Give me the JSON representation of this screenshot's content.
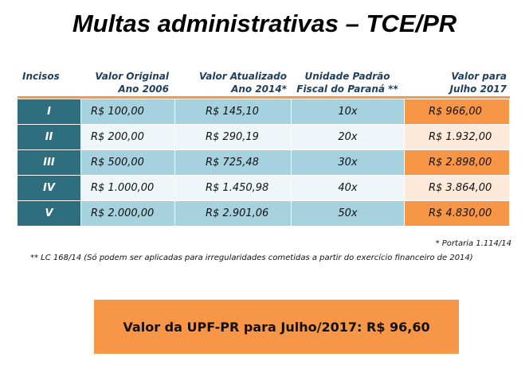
{
  "header": {
    "title": "Multas administrativas – TCE/PR"
  },
  "table": {
    "columns": [
      [
        "Incisos"
      ],
      [
        "Valor Original",
        "Ano 2006"
      ],
      [
        "Valor Atualizado",
        "Ano 2014*"
      ],
      [
        "Unidade Padrão",
        "Fiscal do Paraná **"
      ],
      [
        "Valor para",
        "Julho 2017"
      ]
    ],
    "rows": [
      [
        "I",
        "R$ 100,00",
        "R$ 145,10",
        "10x",
        "R$ 966,00"
      ],
      [
        "II",
        "R$ 200,00",
        "R$ 290,19",
        "20x",
        "R$ 1.932,00"
      ],
      [
        "III",
        "R$ 500,00",
        "R$ 725,48",
        "30x",
        "R$ 2.898,00"
      ],
      [
        "IV",
        "R$ 1.000,00",
        "R$ 1.450,98",
        "40x",
        "R$ 3.864,00"
      ],
      [
        "V",
        "R$ 2.000,00",
        "R$ 2.901,06",
        "50x",
        "R$ 4.830,00"
      ]
    ]
  },
  "footnotes": [
    "* Portaria 1.114/14",
    "** LC 168/14 (Só podem ser aplicadas para irregularidades cometidas a partir do exercício financeiro de 2014)"
  ],
  "highlight": "Valor da UPF-PR para Julho/2017: R$ 96,60"
}
